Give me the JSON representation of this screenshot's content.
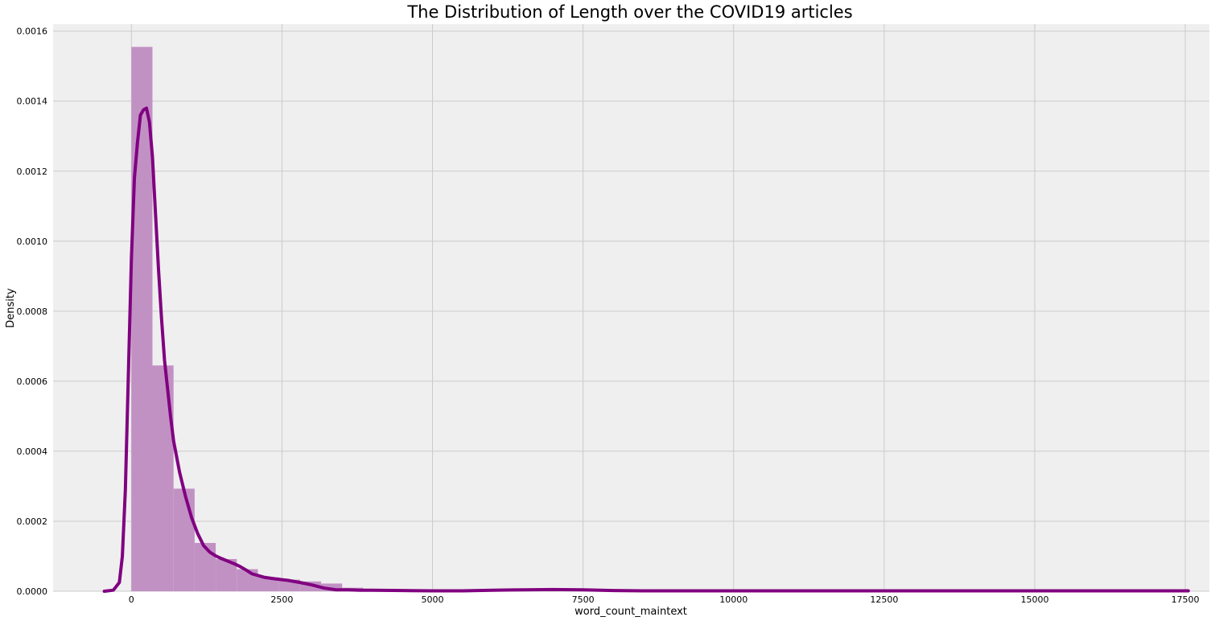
{
  "chart_data": {
    "type": "bar",
    "title": "The Distribution of Length over the COVID19 articles",
    "xlabel": "word_count_maintext",
    "ylabel": "Density",
    "xlim": [
      -1300,
      17900
    ],
    "ylim": [
      0,
      0.00162
    ],
    "grid": true,
    "colors": {
      "background": "#efefef",
      "grid": "#cbcbcb",
      "bar": "#c291c4",
      "kde_line": "#800080"
    },
    "x_ticks": [
      {
        "value": 0,
        "label": "0"
      },
      {
        "value": 2500,
        "label": "2500"
      },
      {
        "value": 5000,
        "label": "5000"
      },
      {
        "value": 7500,
        "label": "7500"
      },
      {
        "value": 10000,
        "label": "10000"
      },
      {
        "value": 12500,
        "label": "12500"
      },
      {
        "value": 15000,
        "label": "15000"
      },
      {
        "value": 17500,
        "label": "17500"
      }
    ],
    "y_ticks": [
      {
        "value": 0,
        "label": "0.0000"
      },
      {
        "value": 0.0002,
        "label": "0.0002"
      },
      {
        "value": 0.0004,
        "label": "0.0004"
      },
      {
        "value": 0.0006,
        "label": "0.0006"
      },
      {
        "value": 0.0008,
        "label": "0.0008"
      },
      {
        "value": 0.001,
        "label": "0.0010"
      },
      {
        "value": 0.0012,
        "label": "0.0012"
      },
      {
        "value": 0.0014,
        "label": "0.0014"
      },
      {
        "value": 0.0016,
        "label": "0.0016"
      }
    ],
    "histogram": {
      "bin_width": 350,
      "bin_start": 0,
      "values": [
        0.001555,
        0.000645,
        0.000293,
        0.000138,
        9.2e-05,
        6.3e-05,
        4e-05,
        3.3e-05,
        2.8e-05,
        2.2e-05,
        1e-05,
        4e-06,
        3e-06,
        2e-06,
        2e-06,
        2e-06,
        2e-06,
        2e-06,
        2e-06,
        2e-06,
        2e-06,
        2e-06,
        2e-06,
        2e-06,
        2e-06,
        2e-06,
        2e-06,
        2e-06,
        2e-06,
        1e-06,
        1e-06,
        1e-06,
        1e-06,
        1e-06,
        1e-06,
        1e-06,
        1e-06,
        1e-06,
        1e-06,
        1e-06,
        1e-06,
        1e-06,
        1e-06,
        1e-06,
        1e-06,
        1e-06,
        1e-06,
        1e-06,
        1e-06,
        1e-06
      ]
    },
    "kde": {
      "x": [
        -450,
        -300,
        -200,
        -150,
        -100,
        -50,
        0,
        50,
        100,
        150,
        200,
        250,
        300,
        350,
        400,
        450,
        500,
        550,
        600,
        650,
        700,
        800,
        900,
        1000,
        1100,
        1200,
        1300,
        1400,
        1500,
        1600,
        1700,
        1800,
        1900,
        2000,
        2200,
        2400,
        2600,
        2800,
        3000,
        3200,
        3400,
        3600,
        3800,
        4000,
        4500,
        5000,
        5500,
        6000,
        6500,
        7000,
        7500,
        8000,
        8500,
        9000,
        10000,
        11000,
        12000,
        13000,
        14000,
        15000,
        16000,
        17000,
        17550
      ],
      "y": [
        0.0,
        3e-06,
        2.5e-05,
        0.0001,
        0.00029,
        0.00062,
        0.00095,
        0.00118,
        0.00128,
        0.00136,
        0.001375,
        0.00138,
        0.00134,
        0.00124,
        0.00108,
        0.00092,
        0.00078,
        0.00066,
        0.00058,
        0.0005,
        0.00043,
        0.00034,
        0.00027,
        0.00021,
        0.000165,
        0.00013,
        0.000112,
        0.000101,
        9.3e-05,
        8.6e-05,
        7.9e-05,
        7.1e-05,
        6.1e-05,
        5e-05,
        4e-05,
        3.5e-05,
        3.1e-05,
        2.5e-05,
        1.8e-05,
        9e-06,
        4e-06,
        4e-06,
        3e-06,
        3e-06,
        2e-06,
        1e-06,
        1e-06,
        3e-06,
        4e-06,
        5e-06,
        4e-06,
        2e-06,
        1e-06,
        1e-06,
        1e-06,
        1e-06,
        1e-06,
        1e-06,
        1e-06,
        1e-06,
        1e-06,
        1e-06,
        1e-06
      ]
    }
  }
}
